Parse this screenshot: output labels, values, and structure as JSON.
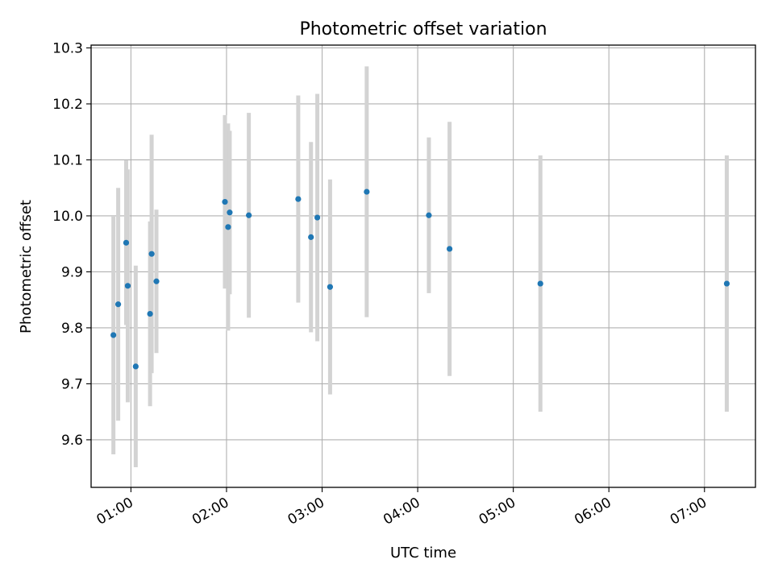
{
  "chart_data": {
    "type": "scatter",
    "title": "Photometric offset variation",
    "xlabel": "UTC time",
    "ylabel": "Photometric offset",
    "x_unit": "UTC time (HH:MM)",
    "xlim": [
      "00:35",
      "07:32"
    ],
    "ylim": [
      9.515,
      10.305
    ],
    "x_ticks": [
      "01:00",
      "02:00",
      "03:00",
      "04:00",
      "05:00",
      "06:00",
      "07:00"
    ],
    "y_ticks": [
      9.6,
      9.7,
      9.8,
      9.9,
      10.0,
      10.1,
      10.2,
      10.3
    ],
    "y_tick_labels": [
      "9.6",
      "9.7",
      "9.8",
      "9.9",
      "10.0",
      "10.1",
      "10.2",
      "10.3"
    ],
    "grid": true,
    "legend": "none",
    "point_color": "#1f77b4",
    "errorbar_color": "#d3d3d3",
    "points": [
      {
        "x": "00:49",
        "y": 9.787,
        "err": 0.213
      },
      {
        "x": "00:52",
        "y": 9.842,
        "err": 0.208
      },
      {
        "x": "00:57",
        "y": 9.952,
        "err": 0.147
      },
      {
        "x": "00:58",
        "y": 9.875,
        "err": 0.208
      },
      {
        "x": "01:03",
        "y": 9.731,
        "err": 0.18
      },
      {
        "x": "01:12",
        "y": 9.825,
        "err": 0.165
      },
      {
        "x": "01:13",
        "y": 9.932,
        "err": 0.213
      },
      {
        "x": "01:16",
        "y": 9.883,
        "err": 0.128
      },
      {
        "x": "01:59",
        "y": 10.025,
        "err": 0.155
      },
      {
        "x": "02:01",
        "y": 9.98,
        "err": 0.185
      },
      {
        "x": "02:02",
        "y": 10.006,
        "err": 0.146
      },
      {
        "x": "02:14",
        "y": 10.001,
        "err": 0.183
      },
      {
        "x": "02:45",
        "y": 10.03,
        "err": 0.185
      },
      {
        "x": "02:53",
        "y": 9.962,
        "err": 0.17
      },
      {
        "x": "02:57",
        "y": 9.997,
        "err": 0.221
      },
      {
        "x": "03:05",
        "y": 9.873,
        "err": 0.192
      },
      {
        "x": "03:28",
        "y": 10.043,
        "err": 0.224
      },
      {
        "x": "04:07",
        "y": 10.001,
        "err": 0.139
      },
      {
        "x": "04:20",
        "y": 9.941,
        "err": 0.227
      },
      {
        "x": "05:17",
        "y": 9.879,
        "err": 0.229
      },
      {
        "x": "07:14",
        "y": 9.879,
        "err": 0.229
      }
    ]
  }
}
